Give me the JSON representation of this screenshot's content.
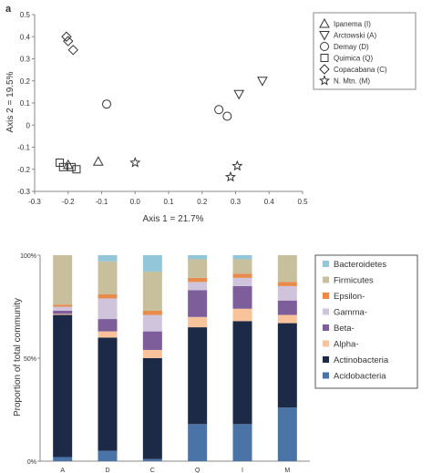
{
  "panel_label": "a",
  "chart_data": [
    {
      "type": "scatter",
      "title": "",
      "xlabel": "Axis 1 = 21.7%",
      "ylabel": "Axis 2 = 19.5%",
      "xlim": [
        -0.3,
        0.5
      ],
      "ylim": [
        -0.3,
        0.5
      ],
      "xticks": [
        -0.3,
        -0.2,
        -0.1,
        0,
        0.1,
        0.2,
        0.3,
        0.4,
        0.5
      ],
      "yticks": [
        -0.3,
        -0.2,
        -0.1,
        0,
        0.1,
        0.2,
        0.3,
        0.4,
        0.5
      ],
      "xtick_labels": [
        "-0.3",
        "-0.2",
        "-0.1",
        "0.0",
        "0.1",
        "0.2",
        "0.3",
        "0.4",
        "0.5"
      ],
      "ytick_labels": [
        "-0.3",
        "-0.2",
        "-0.1",
        "0",
        "0.1",
        "0.2",
        "0.3",
        "0.4",
        "0.5"
      ],
      "legend_position": "top-right",
      "series": [
        {
          "name": "Ipanema (I)",
          "marker": "triangle-up",
          "points": [
            [
              -0.2,
              -0.18
            ],
            [
              -0.11,
              -0.165
            ]
          ]
        },
        {
          "name": "Arctowski (A)",
          "marker": "triangle-down",
          "points": [
            [
              0.31,
              0.14
            ],
            [
              0.38,
              0.2
            ]
          ]
        },
        {
          "name": "Demay (D)",
          "marker": "circle",
          "points": [
            [
              -0.085,
              0.095
            ],
            [
              0.25,
              0.07
            ],
            [
              0.275,
              0.04
            ]
          ]
        },
        {
          "name": "Quimica (Q)",
          "marker": "square",
          "points": [
            [
              -0.225,
              -0.17
            ],
            [
              -0.215,
              -0.19
            ],
            [
              -0.19,
              -0.19
            ],
            [
              -0.175,
              -0.2
            ]
          ]
        },
        {
          "name": "Copacabana (C)",
          "marker": "diamond",
          "points": [
            [
              -0.205,
              0.4
            ],
            [
              -0.2,
              0.38
            ],
            [
              -0.185,
              0.34
            ]
          ]
        },
        {
          "name": "N. Mtn. (M)",
          "marker": "star",
          "points": [
            [
              0.0,
              -0.17
            ],
            [
              0.285,
              -0.235
            ],
            [
              0.305,
              -0.185
            ]
          ]
        }
      ]
    },
    {
      "type": "bar",
      "stacked": true,
      "title": "",
      "xlabel": "",
      "ylabel": "Proportion of total community",
      "ylim": [
        0,
        100
      ],
      "ytick_labels": [
        "0%",
        "50%",
        "100%"
      ],
      "yticks": [
        0,
        50,
        100
      ],
      "categories": [
        "A",
        "D",
        "C",
        "Q",
        "I",
        "M"
      ],
      "legend_position": "right",
      "series": [
        {
          "name": "Acidobacteria",
          "color": "#4a74a8",
          "values": [
            2,
            5,
            1,
            18,
            18,
            26
          ]
        },
        {
          "name": "Actinobacteria",
          "color": "#1c2a47",
          "values": [
            69,
            55,
            49,
            47,
            50,
            41
          ]
        },
        {
          "name": "Alpha-",
          "color": "#f8c39a",
          "values": [
            0.5,
            3,
            4,
            5,
            6,
            4
          ]
        },
        {
          "name": "Beta-",
          "color": "#7d5e9a",
          "values": [
            1.5,
            6,
            9,
            13,
            11,
            7
          ]
        },
        {
          "name": "Gamma-",
          "color": "#cfc4dc",
          "values": [
            2,
            10,
            8,
            4,
            4,
            7
          ]
        },
        {
          "name": "Epsilon-",
          "color": "#e88a4a",
          "values": [
            1,
            2,
            2,
            2,
            2,
            2
          ]
        },
        {
          "name": "Firmicutes",
          "color": "#c8bf9c",
          "values": [
            24,
            16,
            19,
            9,
            7,
            13
          ]
        },
        {
          "name": "Bacteroidetes",
          "color": "#93c6d8",
          "values": [
            0,
            3,
            8,
            2,
            2,
            0
          ]
        }
      ]
    }
  ]
}
